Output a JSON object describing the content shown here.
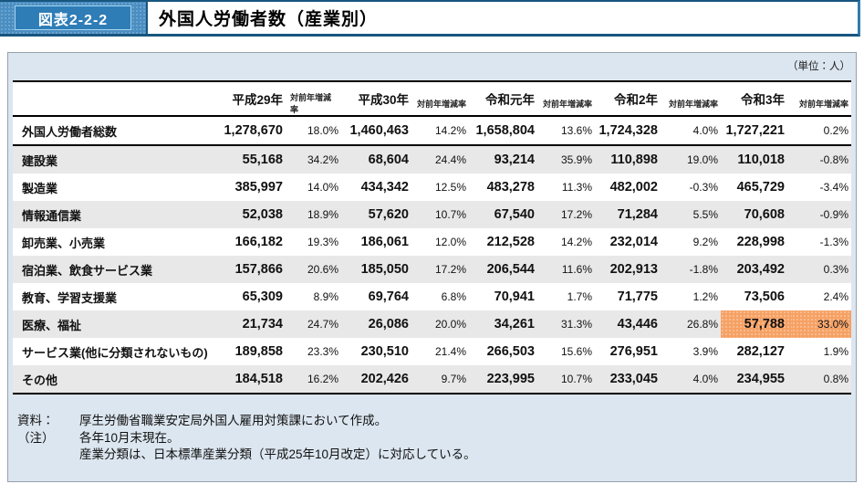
{
  "figure": {
    "label": "図表2-2-2",
    "title": "外国人労働者数（産業別）"
  },
  "unit_label": "（単位：人）",
  "colors": {
    "bar_blue": "#4a8ec2",
    "bar_dark_blue": "#17567f",
    "panel_background": "#dce6f0",
    "row_stripe": "#e8e8e8",
    "highlight_orange": "#f6a164"
  },
  "table": {
    "year_columns": [
      "平成29年",
      "平成30年",
      "令和元年",
      "令和2年",
      "令和3年"
    ],
    "rate_header": "対前年増減率",
    "rows": [
      {
        "label": "外国人労働者総数",
        "total": true,
        "cells": [
          "1,278,670",
          "18.0%",
          "1,460,463",
          "14.2%",
          "1,658,804",
          "13.6%",
          "1,724,328",
          "4.0%",
          "1,727,221",
          "0.2%"
        ]
      },
      {
        "label": "建設業",
        "cells": [
          "55,168",
          "34.2%",
          "68,604",
          "24.4%",
          "93,214",
          "35.9%",
          "110,898",
          "19.0%",
          "110,018",
          "-0.8%"
        ]
      },
      {
        "label": "製造業",
        "cells": [
          "385,997",
          "14.0%",
          "434,342",
          "12.5%",
          "483,278",
          "11.3%",
          "482,002",
          "-0.3%",
          "465,729",
          "-3.4%"
        ]
      },
      {
        "label": "情報通信業",
        "cells": [
          "52,038",
          "18.9%",
          "57,620",
          "10.7%",
          "67,540",
          "17.2%",
          "71,284",
          "5.5%",
          "70,608",
          "-0.9%"
        ]
      },
      {
        "label": "卸売業、小売業",
        "cells": [
          "166,182",
          "19.3%",
          "186,061",
          "12.0%",
          "212,528",
          "14.2%",
          "232,014",
          "9.2%",
          "228,998",
          "-1.3%"
        ]
      },
      {
        "label": "宿泊業、飲食サービス業",
        "cells": [
          "157,866",
          "20.6%",
          "185,050",
          "17.2%",
          "206,544",
          "11.6%",
          "202,913",
          "-1.8%",
          "203,492",
          "0.3%"
        ]
      },
      {
        "label": "教育、学習支援業",
        "cells": [
          "65,309",
          "8.9%",
          "69,764",
          "6.8%",
          "70,941",
          "1.7%",
          "71,775",
          "1.2%",
          "73,506",
          "2.4%"
        ]
      },
      {
        "label": "医療、福祉",
        "highlight_cells": [
          8,
          9
        ],
        "cells": [
          "21,734",
          "24.7%",
          "26,086",
          "20.0%",
          "34,261",
          "31.3%",
          "43,446",
          "26.8%",
          "57,788",
          "33.0%"
        ]
      },
      {
        "label": "サービス業(他に分類されないもの)",
        "cells": [
          "189,858",
          "23.3%",
          "230,510",
          "21.4%",
          "266,503",
          "15.6%",
          "276,951",
          "3.9%",
          "282,127",
          "1.9%"
        ]
      },
      {
        "label": "その他",
        "cells": [
          "184,518",
          "16.2%",
          "202,426",
          "9.7%",
          "223,995",
          "10.7%",
          "233,045",
          "4.0%",
          "234,955",
          "0.8%"
        ]
      }
    ]
  },
  "notes": {
    "source_label": "資料：",
    "source_text": "厚生労働省職業安定局外国人雇用対策課において作成。",
    "note_label": "（注）",
    "note_line1": "各年10月末現在。",
    "note_line2": "産業分類は、日本標準産業分類（平成25年10月改定）に対応している。"
  }
}
